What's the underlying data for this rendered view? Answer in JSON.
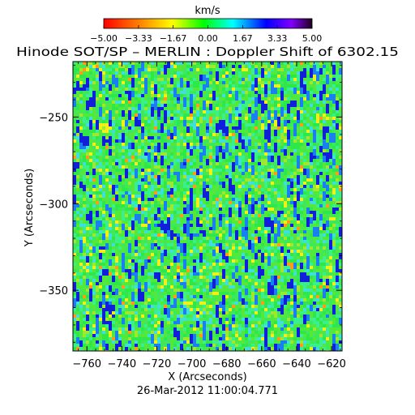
{
  "chart_data": {
    "type": "heatmap",
    "title": "Hinode SOT/SP – MERLIN : Doppler Shift of 6302.15",
    "xlabel": "X (Arcseconds)",
    "ylabel": "Y (Arcseconds)",
    "timestamp": "26-Mar-2012 11:00:04.771",
    "xlim": [
      -768,
      -614
    ],
    "ylim": [
      -385,
      -218
    ],
    "xticks": [
      -760,
      -740,
      -720,
      -700,
      -680,
      -660,
      -640,
      -620
    ],
    "yticks": [
      -250,
      -300,
      -350
    ],
    "xtick_labels": [
      "−760",
      "−740",
      "−720",
      "−700",
      "−680",
      "−660",
      "−640",
      "−620"
    ],
    "ytick_labels": [
      "−250",
      "−300",
      "−350"
    ],
    "colorbar": {
      "unit": "km/s",
      "range": [
        -5.0,
        5.0
      ],
      "ticks": [
        -5.0,
        -3.33,
        -1.67,
        0.0,
        1.67,
        3.33,
        5.0
      ],
      "tick_labels": [
        "−5.00",
        "−3.33",
        "−1.67",
        "0.00",
        "1.67",
        "3.33",
        "5.00"
      ],
      "colors": [
        "#ff0000",
        "#ff8000",
        "#ffff00",
        "#00ff00",
        "#00ffff",
        "#0000ff",
        "#8000ff",
        "#200020"
      ]
    },
    "field_summary": {
      "dominant_value_kms": 0.8,
      "min_value_kms": -2.5,
      "max_value_kms": 4.0
    }
  }
}
